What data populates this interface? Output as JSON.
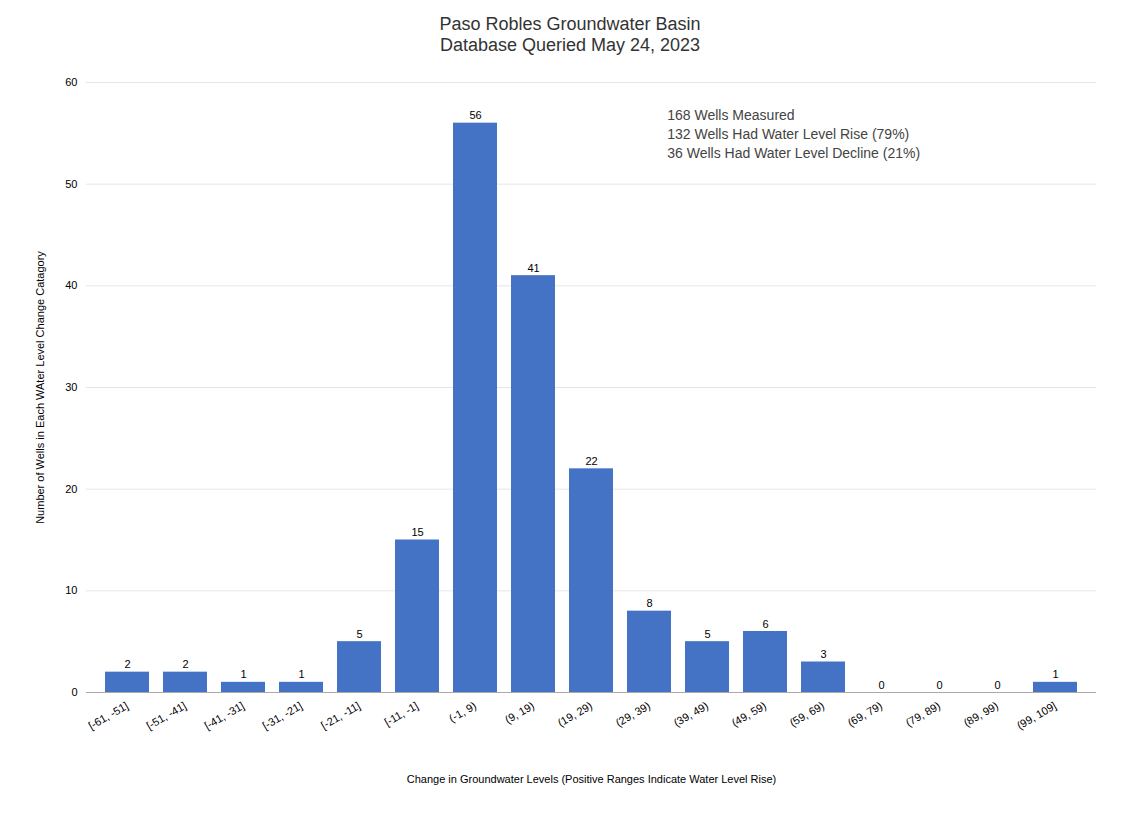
{
  "chart_data": {
    "type": "bar",
    "title": "Paso Robles Groundwater Basin\nDatabase Queried May 24, 2023",
    "xlabel": "Change in Groundwater Levels (Positive Ranges Indicate Water Level Rise)",
    "ylabel": "Number of Wells in Each WAter Level Change Catagory",
    "categories": [
      "[-61, -51]",
      "[-51, -41]",
      "[-41, -31]",
      "[-31, -21]",
      "[-21, -11]",
      "[-11, -1]",
      "(-1, 9)",
      "(9, 19)",
      "(19, 29)",
      "(29, 39)",
      "(39, 49)",
      "(49, 59)",
      "(59, 69)",
      "(69, 79)",
      "(79, 89)",
      "(89, 99)",
      "(99, 109]"
    ],
    "values": [
      2,
      2,
      1,
      1,
      5,
      15,
      56,
      41,
      22,
      8,
      5,
      6,
      3,
      0,
      0,
      0,
      1
    ],
    "color": "#4472C4",
    "ylim": [
      0,
      60
    ],
    "yticks": [
      0,
      10,
      20,
      30,
      40,
      50,
      60
    ],
    "grid": true,
    "data_labels": true,
    "annotations": [
      "168 Wells Measured",
      "132 Wells Had Water Level Rise (79%)",
      "36 Wells Had Water Level Decline (21%)"
    ]
  }
}
